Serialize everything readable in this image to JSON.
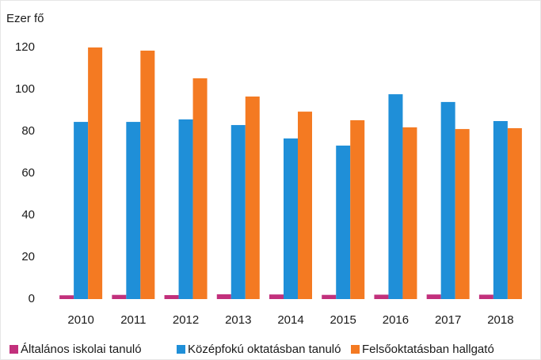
{
  "chart_data": {
    "type": "bar",
    "y_label": "Ezer fő",
    "categories": [
      "2010",
      "2011",
      "2012",
      "2013",
      "2014",
      "2015",
      "2016",
      "2017",
      "2018"
    ],
    "series": [
      {
        "name": "Általános iskolai tanuló",
        "color": "#c2307c",
        "values": [
          1.8,
          2,
          1.9,
          2.3,
          2.2,
          2,
          2.1,
          2.2,
          2.1
        ]
      },
      {
        "name": "Középfokú oktatásban tanuló",
        "color": "#1f8fd8",
        "values": [
          84.5,
          84.5,
          85.7,
          83,
          76.6,
          73.2,
          97.7,
          94,
          84.9
        ]
      },
      {
        "name": "Felsőoktatásban hallgató",
        "color": "#f47a22",
        "values": [
          120,
          118.5,
          105.3,
          96.6,
          89.4,
          85.3,
          81.9,
          81.1,
          81.5
        ]
      }
    ],
    "ylim": [
      0,
      120
    ],
    "yticks": [
      0,
      20,
      40,
      60,
      80,
      100,
      120
    ],
    "grid": false
  }
}
